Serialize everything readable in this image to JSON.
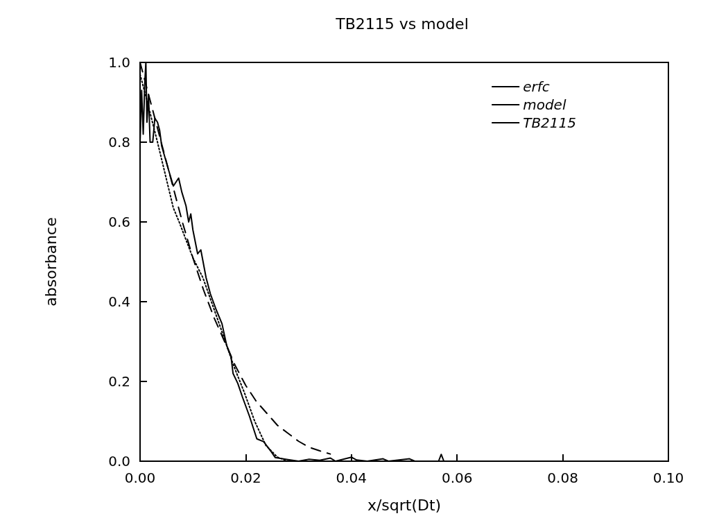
{
  "chart_data": {
    "type": "line",
    "title": "TB2115 vs model",
    "xlabel": "x/sqrt(Dt)",
    "ylabel": "absorbance",
    "xlim": [
      0,
      0.1
    ],
    "ylim": [
      0,
      1
    ],
    "xticks": [
      {
        "value": 0,
        "label": "0.00"
      },
      {
        "value": 0.02,
        "label": "0.02"
      },
      {
        "value": 0.04,
        "label": "0.04"
      },
      {
        "value": 0.06,
        "label": "0.06"
      },
      {
        "value": 0.08,
        "label": "0.08"
      },
      {
        "value": 0.1,
        "label": "0.10"
      }
    ],
    "yticks": [
      {
        "value": 0,
        "label": "0.0"
      },
      {
        "value": 0.2,
        "label": "0.2"
      },
      {
        "value": 0.4,
        "label": "0.4"
      },
      {
        "value": 0.6,
        "label": "0.6"
      },
      {
        "value": 0.8,
        "label": "0.8"
      },
      {
        "value": 1,
        "label": "1.0"
      }
    ],
    "grid": false,
    "legend": "top right",
    "marker": "none",
    "series": [
      {
        "name": "erfc",
        "color": "#000000",
        "line_style": "dashed",
        "x": [
          0,
          0.002,
          0.004,
          0.006,
          0.008,
          0.01,
          0.012,
          0.014,
          0.016,
          0.018,
          0.02,
          0.022,
          0.024,
          0.026,
          0.028,
          0.03,
          0.032,
          0.034,
          0.036
        ],
        "values": [
          1.0,
          0.9,
          0.8,
          0.7,
          0.6,
          0.51,
          0.43,
          0.36,
          0.3,
          0.24,
          0.19,
          0.15,
          0.12,
          0.09,
          0.07,
          0.05,
          0.035,
          0.026,
          0.018
        ]
      },
      {
        "name": "model",
        "color": "#000000",
        "line_style": "dotted",
        "x": [
          0,
          0.001,
          0.0033,
          0.0063,
          0.0074,
          0.01,
          0.0119,
          0.0151,
          0.0177,
          0.0198,
          0.0217,
          0.0238,
          0.026,
          0.028
        ],
        "values": [
          0.97,
          0.92,
          0.8,
          0.635,
          0.6,
          0.51,
          0.46,
          0.34,
          0.24,
          0.17,
          0.1,
          0.04,
          0.01,
          0.0
        ]
      },
      {
        "name": "TB2115",
        "color": "#000000",
        "line_style": "solid",
        "x": [
          0,
          0.0003,
          0.0006,
          0.0009,
          0.0011,
          0.0013,
          0.0016,
          0.0019,
          0.0024,
          0.0028,
          0.0033,
          0.0037,
          0.0041,
          0.0054,
          0.0063,
          0.0073,
          0.0079,
          0.0087,
          0.0092,
          0.0096,
          0.01,
          0.0109,
          0.0115,
          0.0125,
          0.0133,
          0.0144,
          0.0155,
          0.0164,
          0.0172,
          0.0176,
          0.0185,
          0.0194,
          0.0207,
          0.0221,
          0.0234,
          0.0247,
          0.0256,
          0.028,
          0.03,
          0.032,
          0.034,
          0.036,
          0.037,
          0.04,
          0.041,
          0.043,
          0.046,
          0.047,
          0.051,
          0.052,
          0.0565,
          0.057,
          0.0575,
          0.1
        ],
        "values": [
          0.8,
          0.93,
          0.82,
          0.95,
          1.0,
          0.85,
          0.92,
          0.8,
          0.8,
          0.86,
          0.85,
          0.83,
          0.79,
          0.73,
          0.69,
          0.71,
          0.675,
          0.64,
          0.6,
          0.62,
          0.58,
          0.52,
          0.53,
          0.46,
          0.42,
          0.38,
          0.345,
          0.29,
          0.264,
          0.22,
          0.195,
          0.16,
          0.113,
          0.056,
          0.049,
          0.026,
          0.009,
          0.004,
          0.0,
          0.005,
          0.002,
          0.008,
          0.0,
          0.01,
          0.003,
          0.0,
          0.006,
          0.0,
          0.006,
          0.0,
          0.0,
          0.017,
          0.0,
          0.0
        ]
      }
    ]
  }
}
